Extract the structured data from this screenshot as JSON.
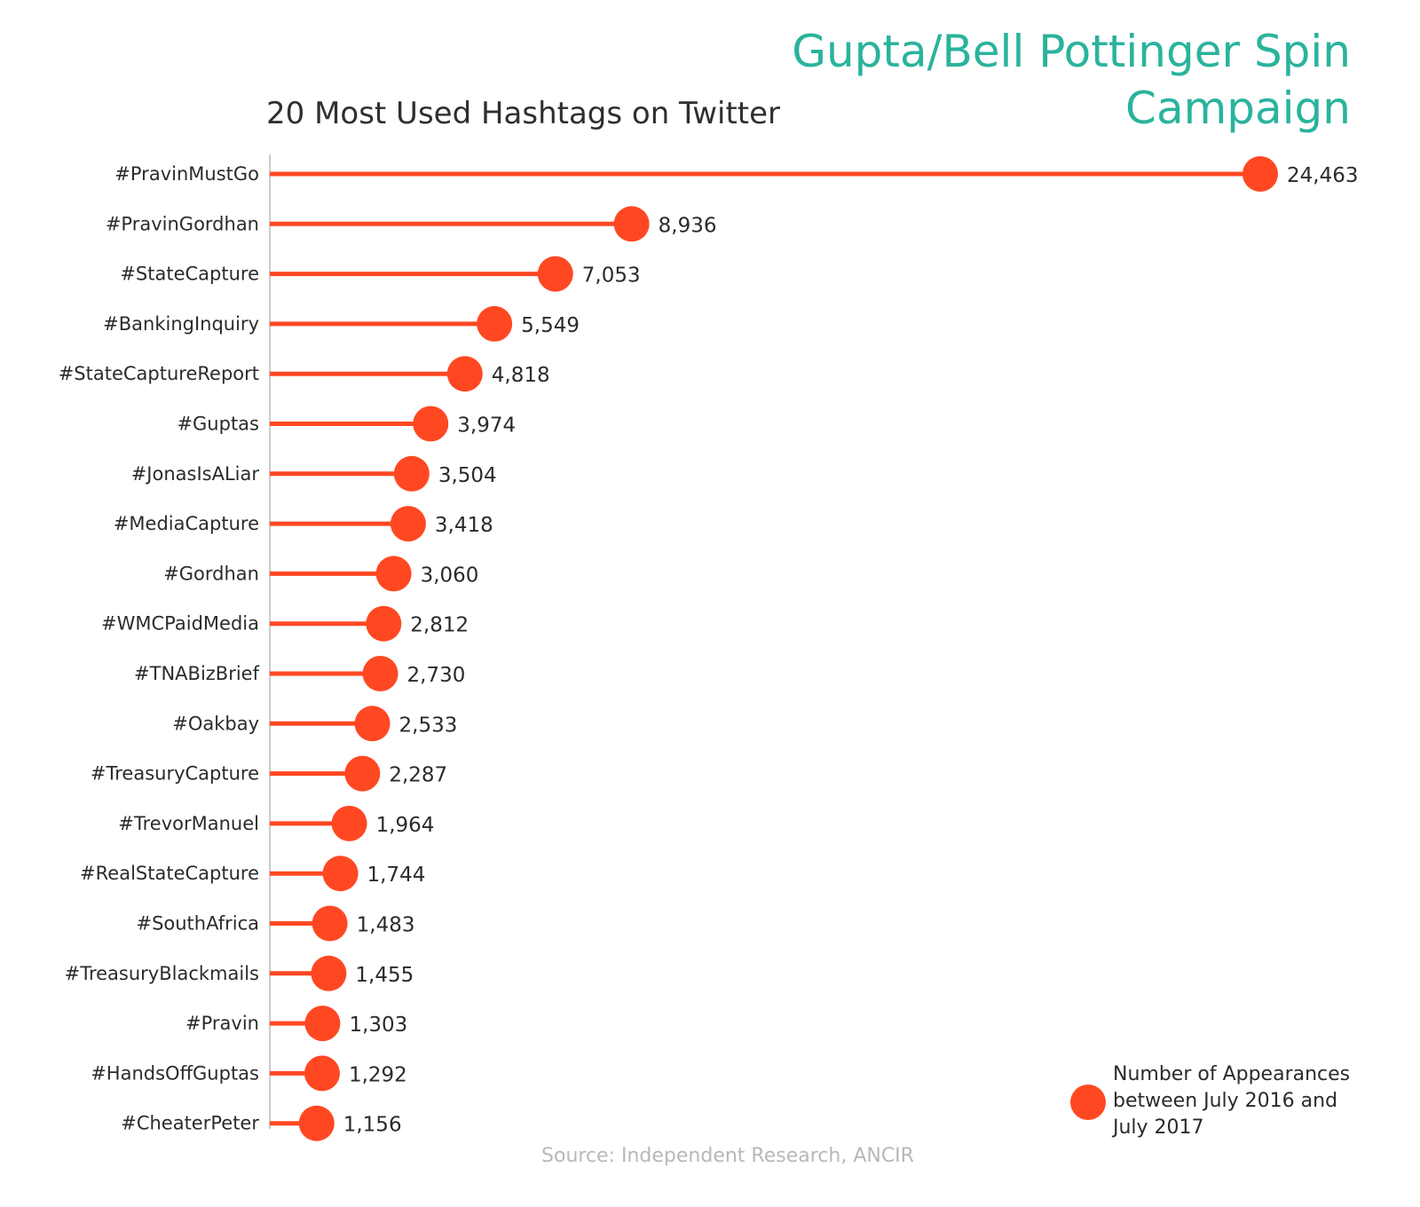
{
  "main_title": "Gupta/Bell Pottinger Spin Campaign",
  "colors": {
    "accent": "#ff4822",
    "title": "#2ab39c",
    "axis": "#999999",
    "source": "#b8b8b8"
  },
  "chart_data": {
    "type": "lollipop",
    "title": "20 Most Used Hashtags on Twitter",
    "orientation": "horizontal",
    "categories": [
      "#PravinMustGo",
      "#PravinGordhan",
      "#StateCapture",
      "#BankingInquiry",
      "#StateCaptureReport",
      "#Guptas",
      "#JonasIsALiar",
      "#MediaCapture",
      "#Gordhan",
      "#WMCPaidMedia",
      "#TNABizBrief",
      "#Oakbay",
      "#TreasuryCapture",
      "#TrevorManuel",
      "#RealStateCapture",
      "#SouthAfrica",
      "#TreasuryBlackmails",
      "#Pravin",
      "#HandsOffGuptas",
      "#CheaterPeter"
    ],
    "values": [
      24463,
      8936,
      7053,
      5549,
      4818,
      3974,
      3504,
      3418,
      3060,
      2812,
      2730,
      2533,
      2287,
      1964,
      1744,
      1483,
      1455,
      1303,
      1292,
      1156
    ],
    "value_labels": [
      "24,463",
      "8,936",
      "7,053",
      "5,549",
      "4,818",
      "3,974",
      "3,504",
      "3,418",
      "3,060",
      "2,812",
      "2,730",
      "2,533",
      "2,287",
      "1,964",
      "1,744",
      "1,483",
      "1,455",
      "1,303",
      "1,292",
      "1,156"
    ],
    "xlim": [
      0,
      24463
    ],
    "legend": {
      "label": "Number of Appearances between July 2016 and July 2017",
      "placement": "bottom-right"
    },
    "source": "Source: Independent Research, ANCIR"
  }
}
